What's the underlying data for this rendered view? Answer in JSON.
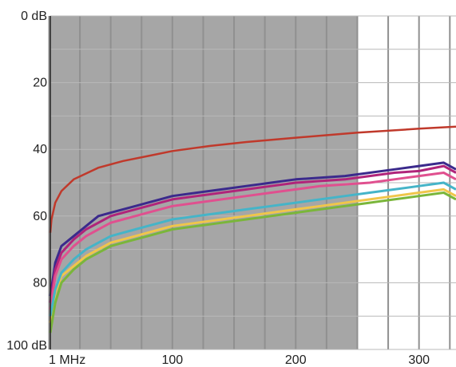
{
  "chart_data": {
    "type": "line",
    "title": "",
    "xlabel": "",
    "ylabel": "",
    "x_ticks": [
      {
        "value": 1,
        "label": "1 MHz"
      },
      {
        "value": 100,
        "label": "100"
      },
      {
        "value": 200,
        "label": "200"
      },
      {
        "value": 300,
        "label": "300"
      }
    ],
    "y_ticks": [
      {
        "value": 0,
        "label": "0 dB"
      },
      {
        "value": 20,
        "label": "20"
      },
      {
        "value": 40,
        "label": "40"
      },
      {
        "value": 60,
        "label": "60"
      },
      {
        "value": 80,
        "label": "80"
      },
      {
        "value": 100,
        "label": "100 dB"
      }
    ],
    "xlim": [
      1,
      330
    ],
    "ylim": [
      0,
      100
    ],
    "y_inverted": true,
    "grid": true,
    "shaded_region": {
      "x_from": 1,
      "x_to": 250,
      "color": "#a6a6a6"
    },
    "limit_line": {
      "color": "#c0392b",
      "x": [
        1,
        2,
        5,
        10,
        20,
        40,
        60,
        80,
        100,
        130,
        160,
        200,
        250,
        300,
        330
      ],
      "y": [
        65,
        61,
        56,
        52.5,
        49,
        45.5,
        43.5,
        42,
        40.5,
        39,
        37.8,
        36.5,
        35,
        33.8,
        33.2
      ]
    },
    "series": [
      {
        "color": "#3b2a8c",
        "x": [
          1,
          5,
          10,
          20,
          30,
          40,
          50,
          60,
          70,
          80,
          90,
          100,
          120,
          140,
          160,
          180,
          200,
          220,
          240,
          260,
          280,
          300,
          320,
          330
        ],
        "y": [
          84,
          74,
          69,
          66,
          63,
          60,
          59,
          58,
          57,
          56,
          55,
          54,
          53,
          52,
          51,
          50,
          49,
          48.5,
          48,
          47,
          46,
          45,
          44,
          46
        ]
      },
      {
        "color": "#b0247a",
        "x": [
          1,
          5,
          10,
          20,
          30,
          40,
          50,
          60,
          70,
          80,
          90,
          100,
          120,
          140,
          160,
          180,
          200,
          220,
          240,
          260,
          280,
          300,
          320,
          330
        ],
        "y": [
          86,
          76,
          71,
          67,
          64,
          62,
          60,
          59,
          58,
          57,
          56,
          55,
          54,
          53,
          52,
          51,
          50,
          49.5,
          49,
          48,
          47,
          46.5,
          45,
          47
        ]
      },
      {
        "color": "#e0508f",
        "x": [
          1,
          5,
          10,
          20,
          30,
          40,
          50,
          60,
          70,
          80,
          90,
          100,
          120,
          140,
          160,
          180,
          200,
          220,
          240,
          260,
          280,
          300,
          320,
          330
        ],
        "y": [
          88,
          78,
          73,
          69,
          66,
          64,
          62,
          61,
          60,
          59,
          58,
          57,
          56,
          55,
          54,
          53,
          52,
          51,
          50.5,
          50,
          49,
          48,
          47,
          49
        ]
      },
      {
        "color": "#f0c64a",
        "x": [
          1,
          5,
          10,
          20,
          30,
          40,
          50,
          60,
          70,
          80,
          90,
          100,
          120,
          140,
          160,
          180,
          200,
          220,
          240,
          260,
          280,
          300,
          320,
          330
        ],
        "y": [
          92,
          83,
          78,
          75,
          72,
          70,
          68,
          67,
          66,
          65,
          64,
          63,
          62,
          61,
          60,
          59,
          58,
          57,
          56,
          55,
          54,
          53,
          52,
          54
        ]
      },
      {
        "color": "#7ab63a",
        "x": [
          1,
          5,
          10,
          20,
          30,
          40,
          50,
          60,
          70,
          80,
          90,
          100,
          120,
          140,
          160,
          180,
          200,
          220,
          240,
          260,
          280,
          300,
          320,
          330
        ],
        "y": [
          95,
          86,
          80,
          76,
          73,
          71,
          69,
          68,
          67,
          66,
          65,
          64,
          63,
          62,
          61,
          60,
          59,
          58,
          57,
          56,
          55,
          54,
          53,
          55
        ]
      },
      {
        "color": "#45b4c8",
        "x": [
          1,
          5,
          10,
          20,
          30,
          40,
          50,
          60,
          70,
          80,
          90,
          100,
          120,
          140,
          160,
          180,
          200,
          220,
          240,
          260,
          280,
          300,
          320,
          330
        ],
        "y": [
          90,
          82,
          77,
          73,
          70,
          68,
          66,
          65,
          64,
          63,
          62,
          61,
          60,
          59,
          58,
          57,
          56,
          55,
          54,
          53,
          52,
          51,
          50,
          52
        ]
      }
    ]
  }
}
